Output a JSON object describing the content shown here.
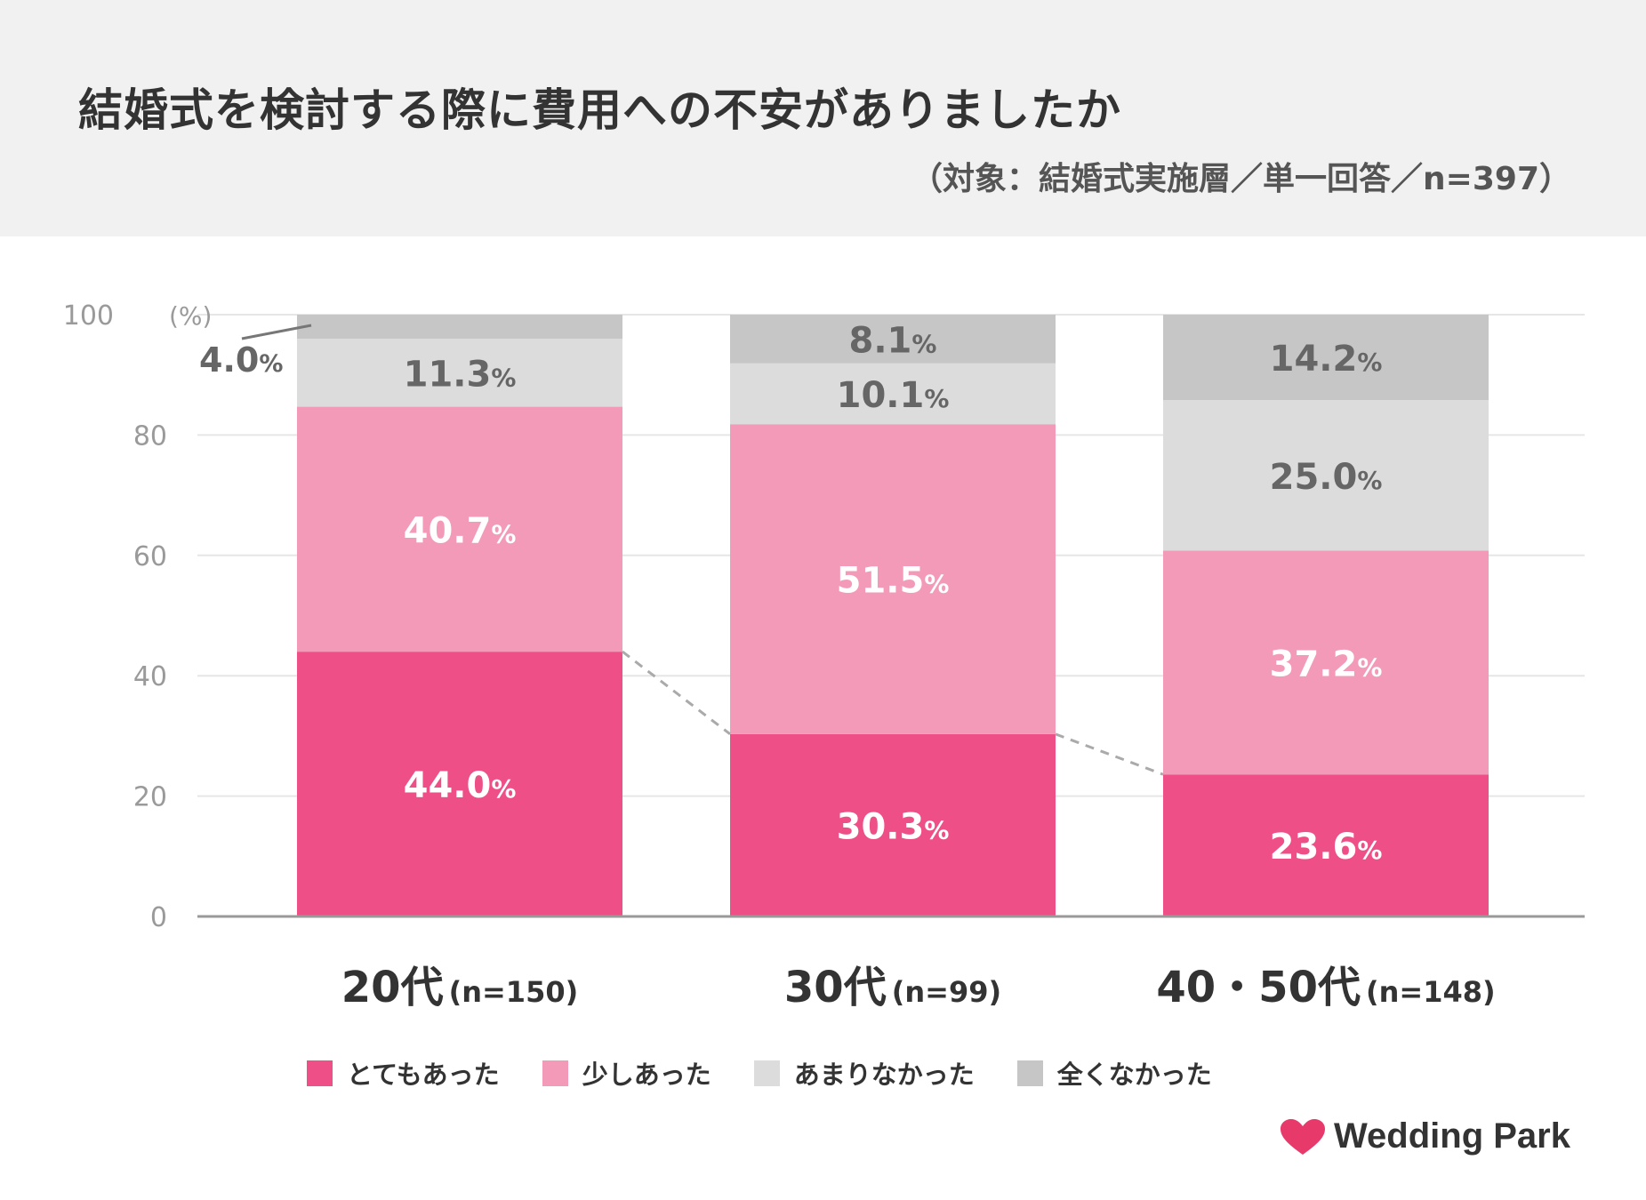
{
  "header": {
    "title": "結婚式を検討する際に費用への不安がありましたか",
    "subtitle": "（対象：結婚式実施層／単一回答／n=397）"
  },
  "colors": {
    "header_bg": "#f1f1f1",
    "very": "#ee4f86",
    "somewhat": "#f39ab8",
    "not_much": "#dcdcdc",
    "none": "#c6c6c6",
    "gridline": "#e6e6e6",
    "axis": "#999999",
    "tick_text": "#9a9a9a",
    "label_dark": "#666666",
    "label_light": "#ffffff",
    "dashed": "#aaaaaa"
  },
  "chart_data": {
    "type": "bar",
    "stacked": true,
    "title": "結婚式を検討する際に費用への不安がありましたか",
    "ylim": [
      0,
      100
    ],
    "yticks": [
      0,
      20,
      40,
      60,
      80,
      100
    ],
    "ytick_labels": [
      "0",
      "20",
      "40",
      "60",
      "80",
      "100"
    ],
    "y_unit": "(%)",
    "categories": [
      {
        "name": "20代",
        "n": "(n=150)"
      },
      {
        "name": "30代",
        "n": "(n=99)"
      },
      {
        "name": "40・50代",
        "n": "(n=148)"
      }
    ],
    "series": [
      {
        "name": "とてもあった",
        "color_key": "very",
        "label_color_key": "label_light",
        "values": [
          44.0,
          30.3,
          23.6
        ],
        "labels": [
          "44.0",
          "30.3",
          "23.6"
        ]
      },
      {
        "name": "少しあった",
        "color_key": "somewhat",
        "label_color_key": "label_light",
        "values": [
          40.7,
          51.5,
          37.2
        ],
        "labels": [
          "40.7",
          "51.5",
          "37.2"
        ]
      },
      {
        "name": "あまりなかった",
        "color_key": "not_much",
        "label_color_key": "label_dark",
        "values": [
          11.3,
          10.1,
          25.0
        ],
        "labels": [
          "11.3",
          "10.1",
          "25.0"
        ]
      },
      {
        "name": "全くなかった",
        "color_key": "none",
        "label_color_key": "label_dark",
        "values": [
          4.0,
          8.1,
          14.2
        ],
        "labels": [
          "4.0",
          "8.1",
          "14.2"
        ]
      }
    ],
    "percent_sign": "%",
    "callout_series_index": 3,
    "callout_category_index": 0,
    "trend_line_series_index": 0,
    "legend_position": "bottom"
  },
  "brand": {
    "name": "Wedding Park",
    "heart_color": "#e8396b"
  }
}
